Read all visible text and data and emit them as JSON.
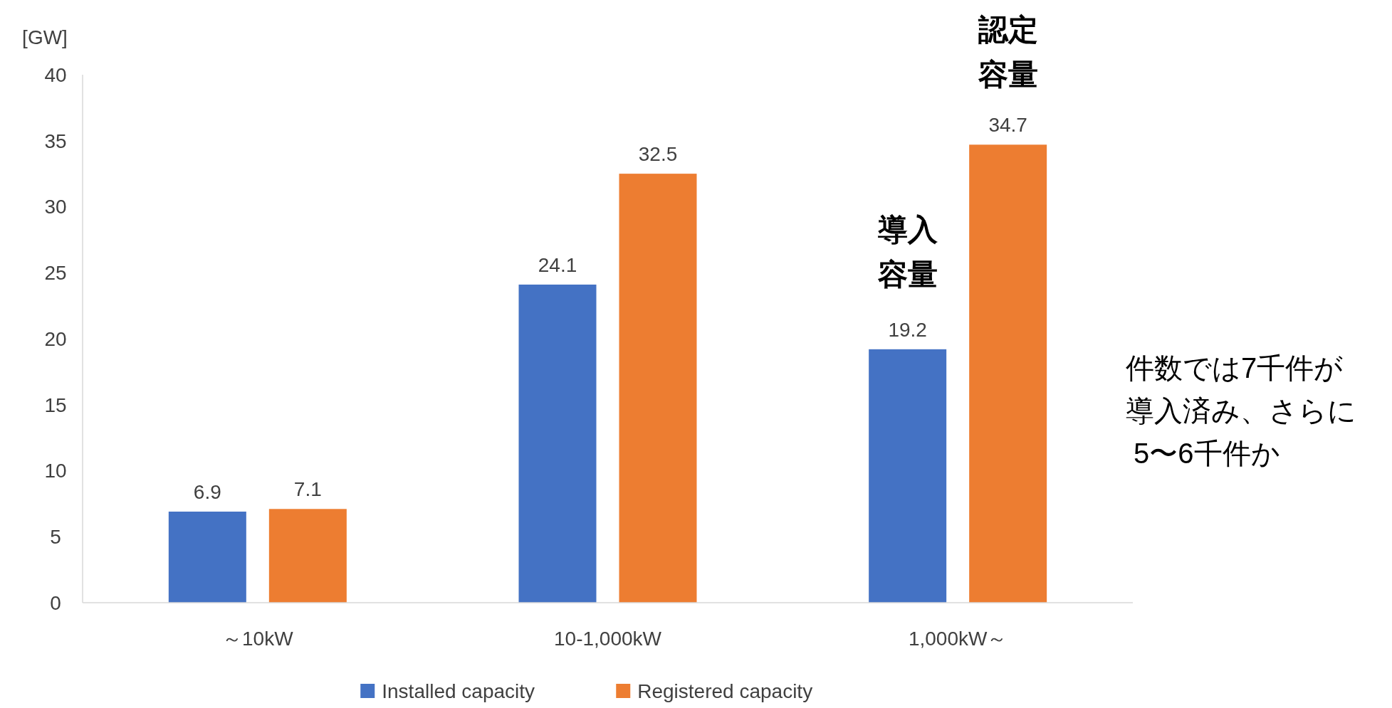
{
  "chart_data": {
    "type": "bar",
    "ylabel": "[GW]",
    "categories": [
      "～10kW",
      "10-1,000kW",
      "1,000kW～"
    ],
    "series": [
      {
        "name": "Installed capacity",
        "color": "#4472c4",
        "values": [
          6.9,
          24.1,
          19.2
        ]
      },
      {
        "name": "Registered capacity",
        "color": "#ed7d31",
        "values": [
          7.1,
          32.5,
          34.7
        ]
      }
    ],
    "ylim": [
      0,
      40
    ],
    "yticks": [
      0,
      5,
      10,
      15,
      20,
      25,
      30,
      35,
      40
    ],
    "data_labels": true,
    "legend": "bottom",
    "grid": false,
    "annotations": [
      "認定容量",
      "導入容量",
      "件数では7千件が導入済み、さらに 5〜6千件か"
    ]
  }
}
